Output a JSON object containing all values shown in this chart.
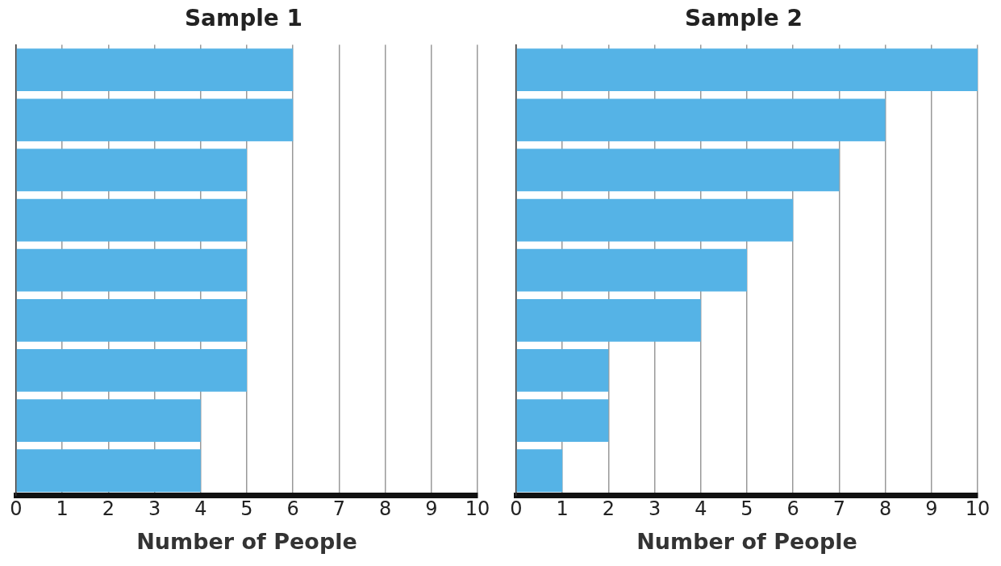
{
  "chart_data": [
    {
      "type": "bar",
      "orientation": "horizontal",
      "title": "Sample 1",
      "xlabel": "Number of People",
      "categories": [
        null,
        null,
        null,
        null,
        null,
        null,
        null,
        null,
        null
      ],
      "values": [
        6,
        6,
        5,
        5,
        5,
        5,
        5,
        4,
        4
      ],
      "color": "#55b3e6",
      "xlim": [
        0,
        10
      ],
      "xticks": [
        0,
        1,
        2,
        3,
        4,
        5,
        6,
        7,
        8,
        9,
        10
      ],
      "grid": "x",
      "tick_labels": "x"
    },
    {
      "type": "bar",
      "orientation": "horizontal",
      "title": "Sample 2",
      "xlabel": "Number of People",
      "categories": [
        null,
        null,
        null,
        null,
        null,
        null,
        null,
        null,
        null
      ],
      "values": [
        10,
        8,
        7,
        6,
        5,
        4,
        2,
        2,
        1
      ],
      "color": "#55b3e6",
      "xlim": [
        0,
        10
      ],
      "xticks": [
        0,
        1,
        2,
        3,
        4,
        5,
        6,
        7,
        8,
        9,
        10
      ],
      "grid": "x",
      "tick_labels": "x"
    }
  ]
}
